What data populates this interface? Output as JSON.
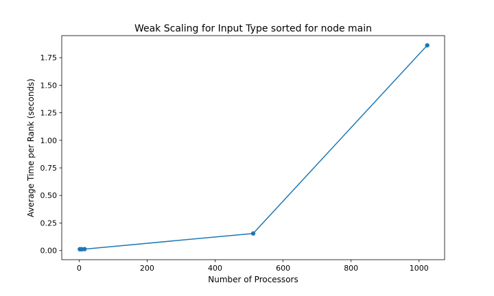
{
  "chart_data": {
    "type": "line",
    "title": "Weak Scaling for Input Type sorted for node main",
    "xlabel": "Number of Processors",
    "ylabel": "Average Time per Rank (seconds)",
    "xlim": [
      -51.1,
      1075.1
    ],
    "ylim": [
      -0.083,
      1.95
    ],
    "xticks": [
      0,
      200,
      400,
      600,
      800,
      1000
    ],
    "yticks": [
      0.0,
      0.25,
      0.5,
      0.75,
      1.0,
      1.25,
      1.5,
      1.75
    ],
    "xtick_labels": [
      "0",
      "200",
      "400",
      "600",
      "800",
      "1000"
    ],
    "ytick_labels": [
      "0.00",
      "0.25",
      "0.50",
      "0.75",
      "1.00",
      "1.25",
      "1.50",
      "1.75"
    ],
    "grid": false,
    "series": [
      {
        "color": "#1f77b4",
        "marker": "circle",
        "x": [
          2,
          4,
          8,
          16,
          512,
          1024
        ],
        "y": [
          0.012,
          0.012,
          0.012,
          0.013,
          0.155,
          1.862
        ]
      }
    ]
  }
}
